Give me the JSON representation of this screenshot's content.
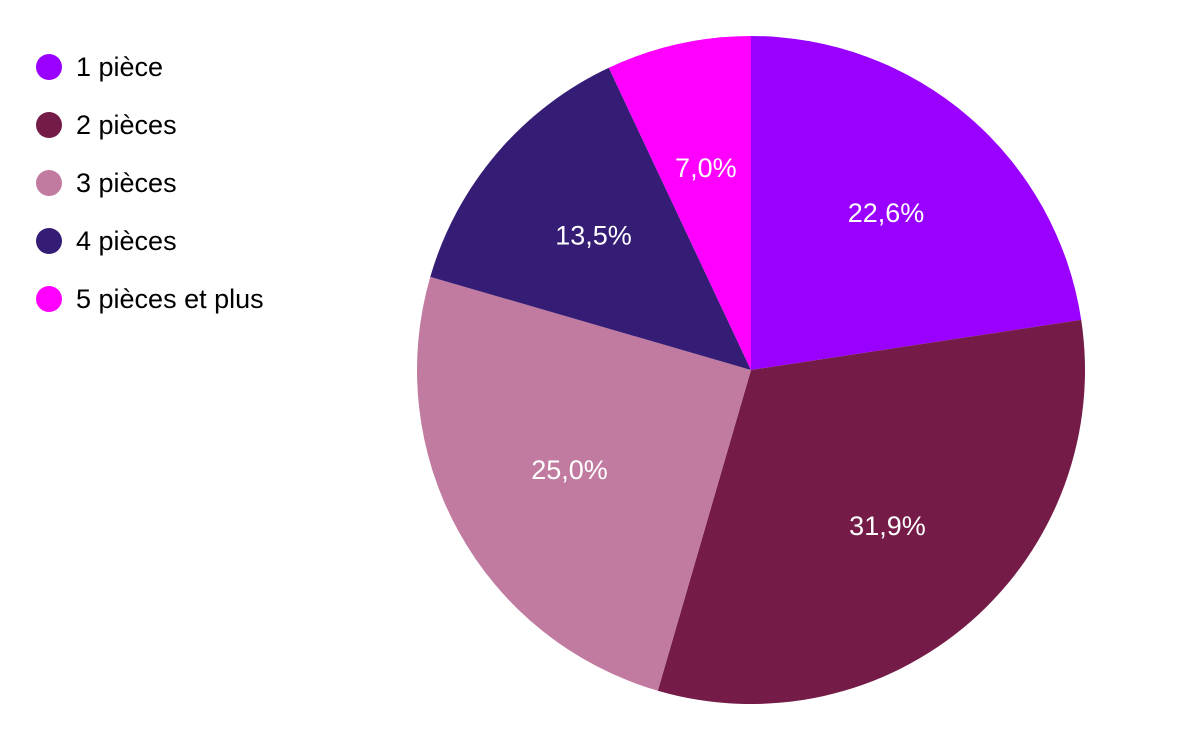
{
  "chart_data": {
    "type": "pie",
    "title": "",
    "legend_position": "top-left",
    "start_angle_deg": 0,
    "direction": "clockwise",
    "slices": [
      {
        "label": "1 pièce",
        "value": 22.6,
        "display": "22,6%",
        "color": "#9900ff"
      },
      {
        "label": "2 pièces",
        "value": 31.9,
        "display": "31,9%",
        "color": "#741b47"
      },
      {
        "label": "3 pièces",
        "value": 25.0,
        "display": "25,0%",
        "color": "#c27ba0"
      },
      {
        "label": "4 pièces",
        "value": 13.5,
        "display": "13,5%",
        "color": "#351c75"
      },
      {
        "label": "5 pièces et plus",
        "value": 7.0,
        "display": "7,0%",
        "color": "#ff00ff"
      }
    ]
  }
}
